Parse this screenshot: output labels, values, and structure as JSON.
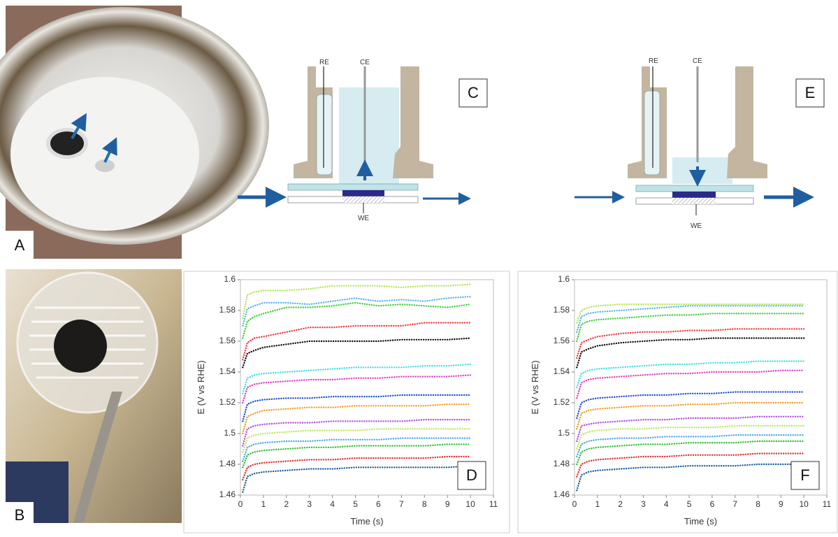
{
  "panels": {
    "a": "A",
    "b": "B",
    "c": "C",
    "e": "E"
  },
  "diagram_c": {
    "re": "RE",
    "ce": "CE",
    "we": "WE"
  },
  "diagram_e": {
    "re": "RE",
    "ce": "CE",
    "we": "WE"
  },
  "chart_data": [
    {
      "type": "line",
      "annotation": "D",
      "xlabel": "Time (s)",
      "ylabel": "E (V vs RHE)",
      "xlim": [
        0,
        11
      ],
      "xticks": [
        0,
        1,
        2,
        3,
        4,
        5,
        6,
        7,
        8,
        9,
        10,
        11
      ],
      "ylim": [
        1.46,
        1.6
      ],
      "yticks": [
        1.46,
        1.48,
        1.5,
        1.52,
        1.54,
        1.56,
        1.58,
        1.6
      ],
      "x": [
        0.1,
        0.3,
        0.6,
        1,
        2,
        3,
        4,
        5,
        6,
        7,
        8,
        9,
        10
      ],
      "series": [
        {
          "color": "#b5e655",
          "values": [
            1.575,
            1.59,
            1.592,
            1.593,
            1.593,
            1.594,
            1.596,
            1.596,
            1.596,
            1.595,
            1.596,
            1.596,
            1.597
          ]
        },
        {
          "color": "#5ab4f0",
          "values": [
            1.57,
            1.581,
            1.583,
            1.585,
            1.585,
            1.584,
            1.586,
            1.588,
            1.586,
            1.587,
            1.586,
            1.588,
            1.589
          ]
        },
        {
          "color": "#3cd23c",
          "values": [
            1.562,
            1.573,
            1.576,
            1.578,
            1.582,
            1.582,
            1.583,
            1.585,
            1.583,
            1.584,
            1.583,
            1.582,
            1.584
          ]
        },
        {
          "color": "#f03c3c",
          "values": [
            1.548,
            1.559,
            1.562,
            1.563,
            1.566,
            1.569,
            1.569,
            1.57,
            1.57,
            1.57,
            1.572,
            1.572,
            1.572
          ]
        },
        {
          "color": "#111111",
          "values": [
            1.543,
            1.552,
            1.554,
            1.556,
            1.558,
            1.56,
            1.56,
            1.56,
            1.56,
            1.561,
            1.561,
            1.561,
            1.562
          ]
        },
        {
          "color": "#40e0e0",
          "values": [
            1.526,
            1.536,
            1.538,
            1.539,
            1.54,
            1.541,
            1.542,
            1.543,
            1.543,
            1.543,
            1.544,
            1.544,
            1.545
          ]
        },
        {
          "color": "#e040c0",
          "values": [
            1.52,
            1.53,
            1.532,
            1.533,
            1.534,
            1.535,
            1.535,
            1.536,
            1.536,
            1.537,
            1.537,
            1.537,
            1.538
          ]
        },
        {
          "color": "#2050d0",
          "values": [
            1.508,
            1.519,
            1.521,
            1.522,
            1.523,
            1.523,
            1.524,
            1.524,
            1.524,
            1.525,
            1.525,
            1.525,
            1.525
          ]
        },
        {
          "color": "#f0a020",
          "values": [
            1.5,
            1.511,
            1.513,
            1.515,
            1.516,
            1.517,
            1.517,
            1.518,
            1.518,
            1.518,
            1.518,
            1.519,
            1.519
          ]
        },
        {
          "color": "#b050e0",
          "values": [
            1.492,
            1.503,
            1.505,
            1.506,
            1.507,
            1.507,
            1.508,
            1.508,
            1.508,
            1.508,
            1.509,
            1.509,
            1.509
          ]
        },
        {
          "color": "#c0e860",
          "values": [
            1.488,
            1.497,
            1.499,
            1.5,
            1.501,
            1.502,
            1.502,
            1.502,
            1.503,
            1.503,
            1.503,
            1.503,
            1.503
          ]
        },
        {
          "color": "#4aa8e8",
          "values": [
            1.482,
            1.491,
            1.493,
            1.494,
            1.495,
            1.495,
            1.496,
            1.496,
            1.496,
            1.497,
            1.497,
            1.497,
            1.497
          ]
        },
        {
          "color": "#30c030",
          "values": [
            1.478,
            1.486,
            1.488,
            1.489,
            1.49,
            1.491,
            1.491,
            1.492,
            1.492,
            1.492,
            1.492,
            1.493,
            1.493
          ]
        },
        {
          "color": "#e03030",
          "values": [
            1.47,
            1.478,
            1.48,
            1.481,
            1.482,
            1.483,
            1.483,
            1.484,
            1.484,
            1.484,
            1.484,
            1.485,
            1.485
          ]
        },
        {
          "color": "#1f5fa0",
          "values": [
            1.462,
            1.472,
            1.474,
            1.475,
            1.476,
            1.477,
            1.477,
            1.478,
            1.478,
            1.478,
            1.478,
            1.478,
            1.479
          ]
        }
      ]
    },
    {
      "type": "line",
      "annotation": "F",
      "xlabel": "Time (s)",
      "ylabel": "E (V vs RHE)",
      "xlim": [
        0,
        11
      ],
      "xticks": [
        0,
        1,
        2,
        3,
        4,
        5,
        6,
        7,
        8,
        9,
        10,
        11
      ],
      "ylim": [
        1.46,
        1.6
      ],
      "yticks": [
        1.46,
        1.48,
        1.5,
        1.52,
        1.54,
        1.56,
        1.58,
        1.6
      ],
      "x": [
        0.1,
        0.3,
        0.6,
        1,
        2,
        3,
        4,
        5,
        6,
        7,
        8,
        9,
        10
      ],
      "series": [
        {
          "color": "#b5e655",
          "values": [
            1.572,
            1.58,
            1.582,
            1.583,
            1.584,
            1.584,
            1.584,
            1.584,
            1.584,
            1.584,
            1.584,
            1.584,
            1.584
          ]
        },
        {
          "color": "#5ab4f0",
          "values": [
            1.566,
            1.576,
            1.578,
            1.579,
            1.58,
            1.581,
            1.582,
            1.583,
            1.583,
            1.583,
            1.583,
            1.583,
            1.583
          ]
        },
        {
          "color": "#3cd23c",
          "values": [
            1.56,
            1.571,
            1.573,
            1.574,
            1.575,
            1.576,
            1.577,
            1.577,
            1.578,
            1.578,
            1.578,
            1.578,
            1.578
          ]
        },
        {
          "color": "#f03c3c",
          "values": [
            1.549,
            1.559,
            1.561,
            1.563,
            1.565,
            1.566,
            1.566,
            1.567,
            1.567,
            1.568,
            1.568,
            1.568,
            1.568
          ]
        },
        {
          "color": "#111111",
          "values": [
            1.543,
            1.553,
            1.555,
            1.557,
            1.559,
            1.56,
            1.561,
            1.561,
            1.562,
            1.562,
            1.562,
            1.562,
            1.562
          ]
        },
        {
          "color": "#40e0e0",
          "values": [
            1.53,
            1.539,
            1.541,
            1.542,
            1.543,
            1.544,
            1.545,
            1.545,
            1.546,
            1.546,
            1.547,
            1.547,
            1.547
          ]
        },
        {
          "color": "#e040c0",
          "values": [
            1.523,
            1.533,
            1.535,
            1.536,
            1.537,
            1.538,
            1.539,
            1.539,
            1.54,
            1.54,
            1.54,
            1.541,
            1.541
          ]
        },
        {
          "color": "#2050d0",
          "values": [
            1.51,
            1.52,
            1.522,
            1.523,
            1.524,
            1.525,
            1.525,
            1.526,
            1.526,
            1.527,
            1.527,
            1.527,
            1.527
          ]
        },
        {
          "color": "#f0a020",
          "values": [
            1.503,
            1.513,
            1.515,
            1.516,
            1.517,
            1.518,
            1.518,
            1.519,
            1.519,
            1.52,
            1.52,
            1.52,
            1.52
          ]
        },
        {
          "color": "#b050e0",
          "values": [
            1.495,
            1.505,
            1.506,
            1.507,
            1.508,
            1.509,
            1.509,
            1.51,
            1.51,
            1.51,
            1.511,
            1.511,
            1.511
          ]
        },
        {
          "color": "#c0e860",
          "values": [
            1.49,
            1.499,
            1.501,
            1.502,
            1.503,
            1.503,
            1.504,
            1.504,
            1.504,
            1.505,
            1.505,
            1.505,
            1.505
          ]
        },
        {
          "color": "#4aa8e8",
          "values": [
            1.485,
            1.493,
            1.495,
            1.496,
            1.497,
            1.497,
            1.498,
            1.498,
            1.498,
            1.499,
            1.499,
            1.499,
            1.499
          ]
        },
        {
          "color": "#30c030",
          "values": [
            1.48,
            1.488,
            1.49,
            1.491,
            1.492,
            1.493,
            1.493,
            1.494,
            1.494,
            1.494,
            1.495,
            1.495,
            1.495
          ]
        },
        {
          "color": "#e03030",
          "values": [
            1.472,
            1.48,
            1.482,
            1.483,
            1.484,
            1.485,
            1.485,
            1.486,
            1.486,
            1.486,
            1.487,
            1.487,
            1.487
          ]
        },
        {
          "color": "#1f5fa0",
          "values": [
            1.463,
            1.473,
            1.475,
            1.476,
            1.477,
            1.478,
            1.478,
            1.479,
            1.479,
            1.479,
            1.48,
            1.48,
            1.48
          ]
        }
      ]
    }
  ]
}
